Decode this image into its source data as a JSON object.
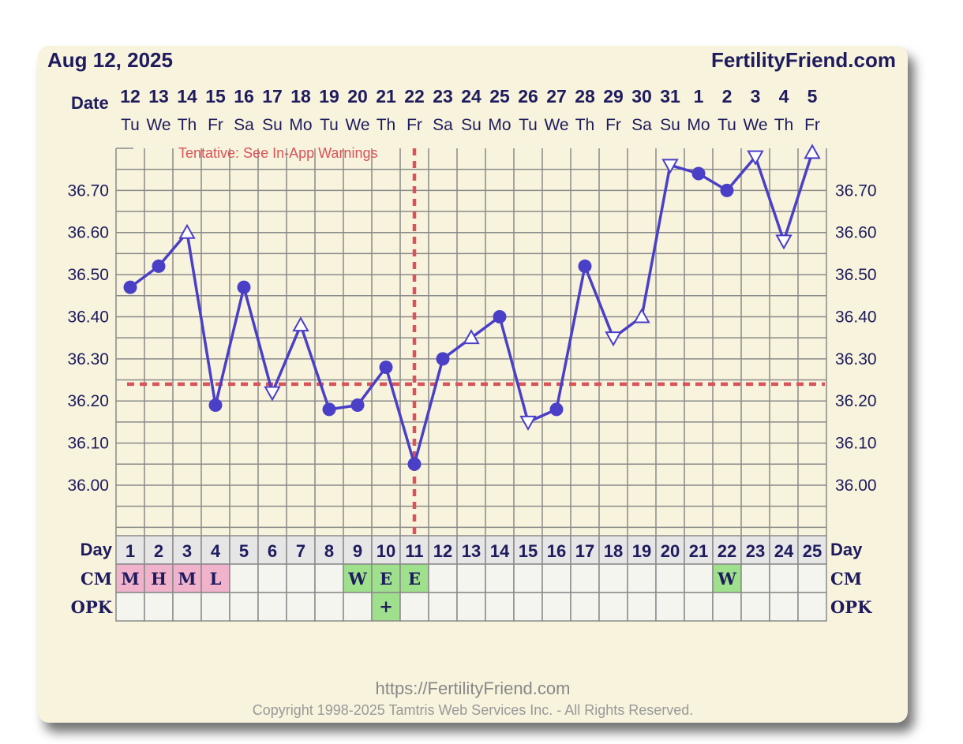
{
  "header": {
    "date": "Aug 12, 2025",
    "brand": "FertilityFriend.com"
  },
  "warning": "Tentative: See In-App Warnings",
  "footer": {
    "url": "https://FertilityFriend.com",
    "copyright": "Copyright 1998-2025 Tamtris Web Services Inc. - All Rights Reserved."
  },
  "colors": {
    "line": "#4a3fc7",
    "coverline": "#d9535a",
    "cm_pink": "#f0b3cb",
    "cm_green": "#9fe08d",
    "grid": "#8a8a8a",
    "background": "#f7f3dc"
  },
  "chart_data": {
    "type": "line",
    "row_labels": {
      "date": "Date",
      "day": "Day",
      "cm": "CM",
      "opk": "OPK"
    },
    "dates": [
      "12",
      "13",
      "14",
      "15",
      "16",
      "17",
      "18",
      "19",
      "20",
      "21",
      "22",
      "23",
      "24",
      "25",
      "26",
      "27",
      "28",
      "29",
      "30",
      "31",
      "1",
      "2",
      "3",
      "4",
      "5"
    ],
    "weekdays": [
      "Tu",
      "We",
      "Th",
      "Fr",
      "Sa",
      "Su",
      "Mo",
      "Tu",
      "We",
      "Th",
      "Fr",
      "Sa",
      "Su",
      "Mo",
      "Tu",
      "We",
      "Th",
      "Fr",
      "Sa",
      "Su",
      "Mo",
      "Tu",
      "We",
      "Th",
      "Fr"
    ],
    "cycle_days": [
      1,
      2,
      3,
      4,
      5,
      6,
      7,
      8,
      9,
      10,
      11,
      12,
      13,
      14,
      15,
      16,
      17,
      18,
      19,
      20,
      21,
      22,
      23,
      24,
      25
    ],
    "y_ticks": [
      "36.00",
      "36.10",
      "36.20",
      "36.30",
      "36.40",
      "36.50",
      "36.60",
      "36.70"
    ],
    "ylim": [
      35.88,
      36.8
    ],
    "temperatures": [
      36.47,
      36.52,
      36.6,
      36.19,
      36.47,
      36.22,
      36.38,
      36.18,
      36.19,
      36.28,
      36.05,
      36.3,
      36.35,
      36.4,
      36.15,
      36.18,
      36.52,
      36.35,
      36.4,
      36.76,
      36.74,
      36.7,
      36.78,
      36.58,
      36.79
    ],
    "markers": [
      "circle",
      "circle",
      "triangle-up",
      "circle",
      "circle",
      "triangle-down",
      "triangle-up",
      "circle",
      "circle",
      "circle",
      "circle",
      "circle",
      "triangle-up",
      "circle",
      "triangle-down",
      "circle",
      "circle",
      "triangle-down",
      "triangle-up",
      "triangle-down",
      "circle",
      "circle",
      "triangle-down",
      "triangle-down",
      "triangle-up"
    ],
    "coverline": 36.24,
    "ovulation_day": 11,
    "cm": [
      "M",
      "H",
      "M",
      "L",
      "",
      "",
      "",
      "",
      "W",
      "E",
      "E",
      "",
      "",
      "",
      "",
      "",
      "",
      "",
      "",
      "",
      "",
      "W",
      "",
      "",
      ""
    ],
    "cm_colors": [
      "pink",
      "pink",
      "pink",
      "pink",
      "",
      "",
      "",
      "",
      "green",
      "green",
      "green",
      "",
      "",
      "",
      "",
      "",
      "",
      "",
      "",
      "",
      "",
      "green",
      "",
      "",
      ""
    ],
    "opk": [
      "",
      "",
      "",
      "",
      "",
      "",
      "",
      "",
      "",
      "+",
      "",
      "",
      "",
      "",
      "",
      "",
      "",
      "",
      "",
      "",
      "",
      "",
      "",
      "",
      ""
    ],
    "opk_colors": [
      "",
      "",
      "",
      "",
      "",
      "",
      "",
      "",
      "",
      "green",
      "",
      "",
      "",
      "",
      "",
      "",
      "",
      "",
      "",
      "",
      "",
      "",
      "",
      "",
      ""
    ],
    "grid": true
  }
}
